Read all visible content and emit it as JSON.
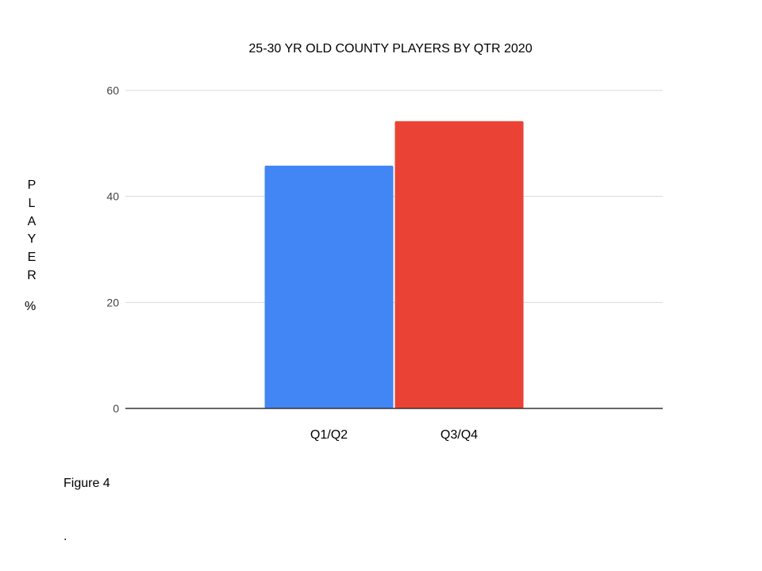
{
  "chart_data": {
    "type": "bar",
    "title": "25-30 YR OLD COUNTY PLAYERS BY QTR 2020",
    "ylabel_letters": [
      "P",
      "L",
      "A",
      "Y",
      "E",
      "R"
    ],
    "ylabel_unit": "%",
    "xlabel": "",
    "categories": [
      "Q1/Q2",
      "Q3/Q4"
    ],
    "values": [
      45.8,
      54.2
    ],
    "colors": [
      "#4285f4",
      "#ea4335"
    ],
    "ylim": [
      0,
      60
    ],
    "yticks": [
      0,
      20,
      40,
      60
    ],
    "grid": true,
    "legend": "none"
  },
  "caption": "Figure 4",
  "trailing": "."
}
